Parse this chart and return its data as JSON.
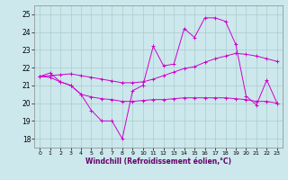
{
  "xlabel": "Windchill (Refroidissement éolien,°C)",
  "bg_color": "#cce8ec",
  "grid_color": "#aacccc",
  "line_color": "#cc00cc",
  "xlim": [
    -0.5,
    23.5
  ],
  "ylim": [
    17.5,
    25.5
  ],
  "yticks": [
    18,
    19,
    20,
    21,
    22,
    23,
    24,
    25
  ],
  "xticks": [
    0,
    1,
    2,
    3,
    4,
    5,
    6,
    7,
    8,
    9,
    10,
    11,
    12,
    13,
    14,
    15,
    16,
    17,
    18,
    19,
    20,
    21,
    22,
    23
  ],
  "line1_x": [
    0,
    1,
    2,
    3,
    4,
    5,
    6,
    7,
    8,
    9,
    10,
    11,
    12,
    13,
    14,
    15,
    16,
    17,
    18,
    19,
    20,
    21,
    22,
    23
  ],
  "line1_y": [
    21.5,
    21.7,
    21.2,
    21.0,
    20.5,
    19.6,
    19.0,
    19.0,
    18.0,
    20.7,
    21.0,
    23.2,
    22.1,
    22.2,
    24.2,
    23.7,
    24.8,
    24.8,
    24.6,
    23.3,
    20.4,
    19.9,
    21.3,
    20.0
  ],
  "line2_x": [
    0,
    1,
    2,
    3,
    4,
    5,
    6,
    7,
    8,
    9,
    10,
    11,
    12,
    13,
    14,
    15,
    16,
    17,
    18,
    19,
    20,
    21,
    22,
    23
  ],
  "line2_y": [
    21.5,
    21.55,
    21.6,
    21.65,
    21.55,
    21.45,
    21.35,
    21.25,
    21.15,
    21.15,
    21.2,
    21.35,
    21.55,
    21.75,
    21.95,
    22.05,
    22.3,
    22.5,
    22.65,
    22.8,
    22.75,
    22.65,
    22.5,
    22.35
  ],
  "line3_x": [
    0,
    1,
    2,
    3,
    4,
    5,
    6,
    7,
    8,
    9,
    10,
    11,
    12,
    13,
    14,
    15,
    16,
    17,
    18,
    19,
    20,
    21,
    22,
    23
  ],
  "line3_y": [
    21.5,
    21.45,
    21.2,
    21.0,
    20.5,
    20.35,
    20.25,
    20.2,
    20.1,
    20.1,
    20.15,
    20.2,
    20.2,
    20.25,
    20.3,
    20.3,
    20.3,
    20.3,
    20.3,
    20.25,
    20.2,
    20.1,
    20.1,
    20.0
  ]
}
